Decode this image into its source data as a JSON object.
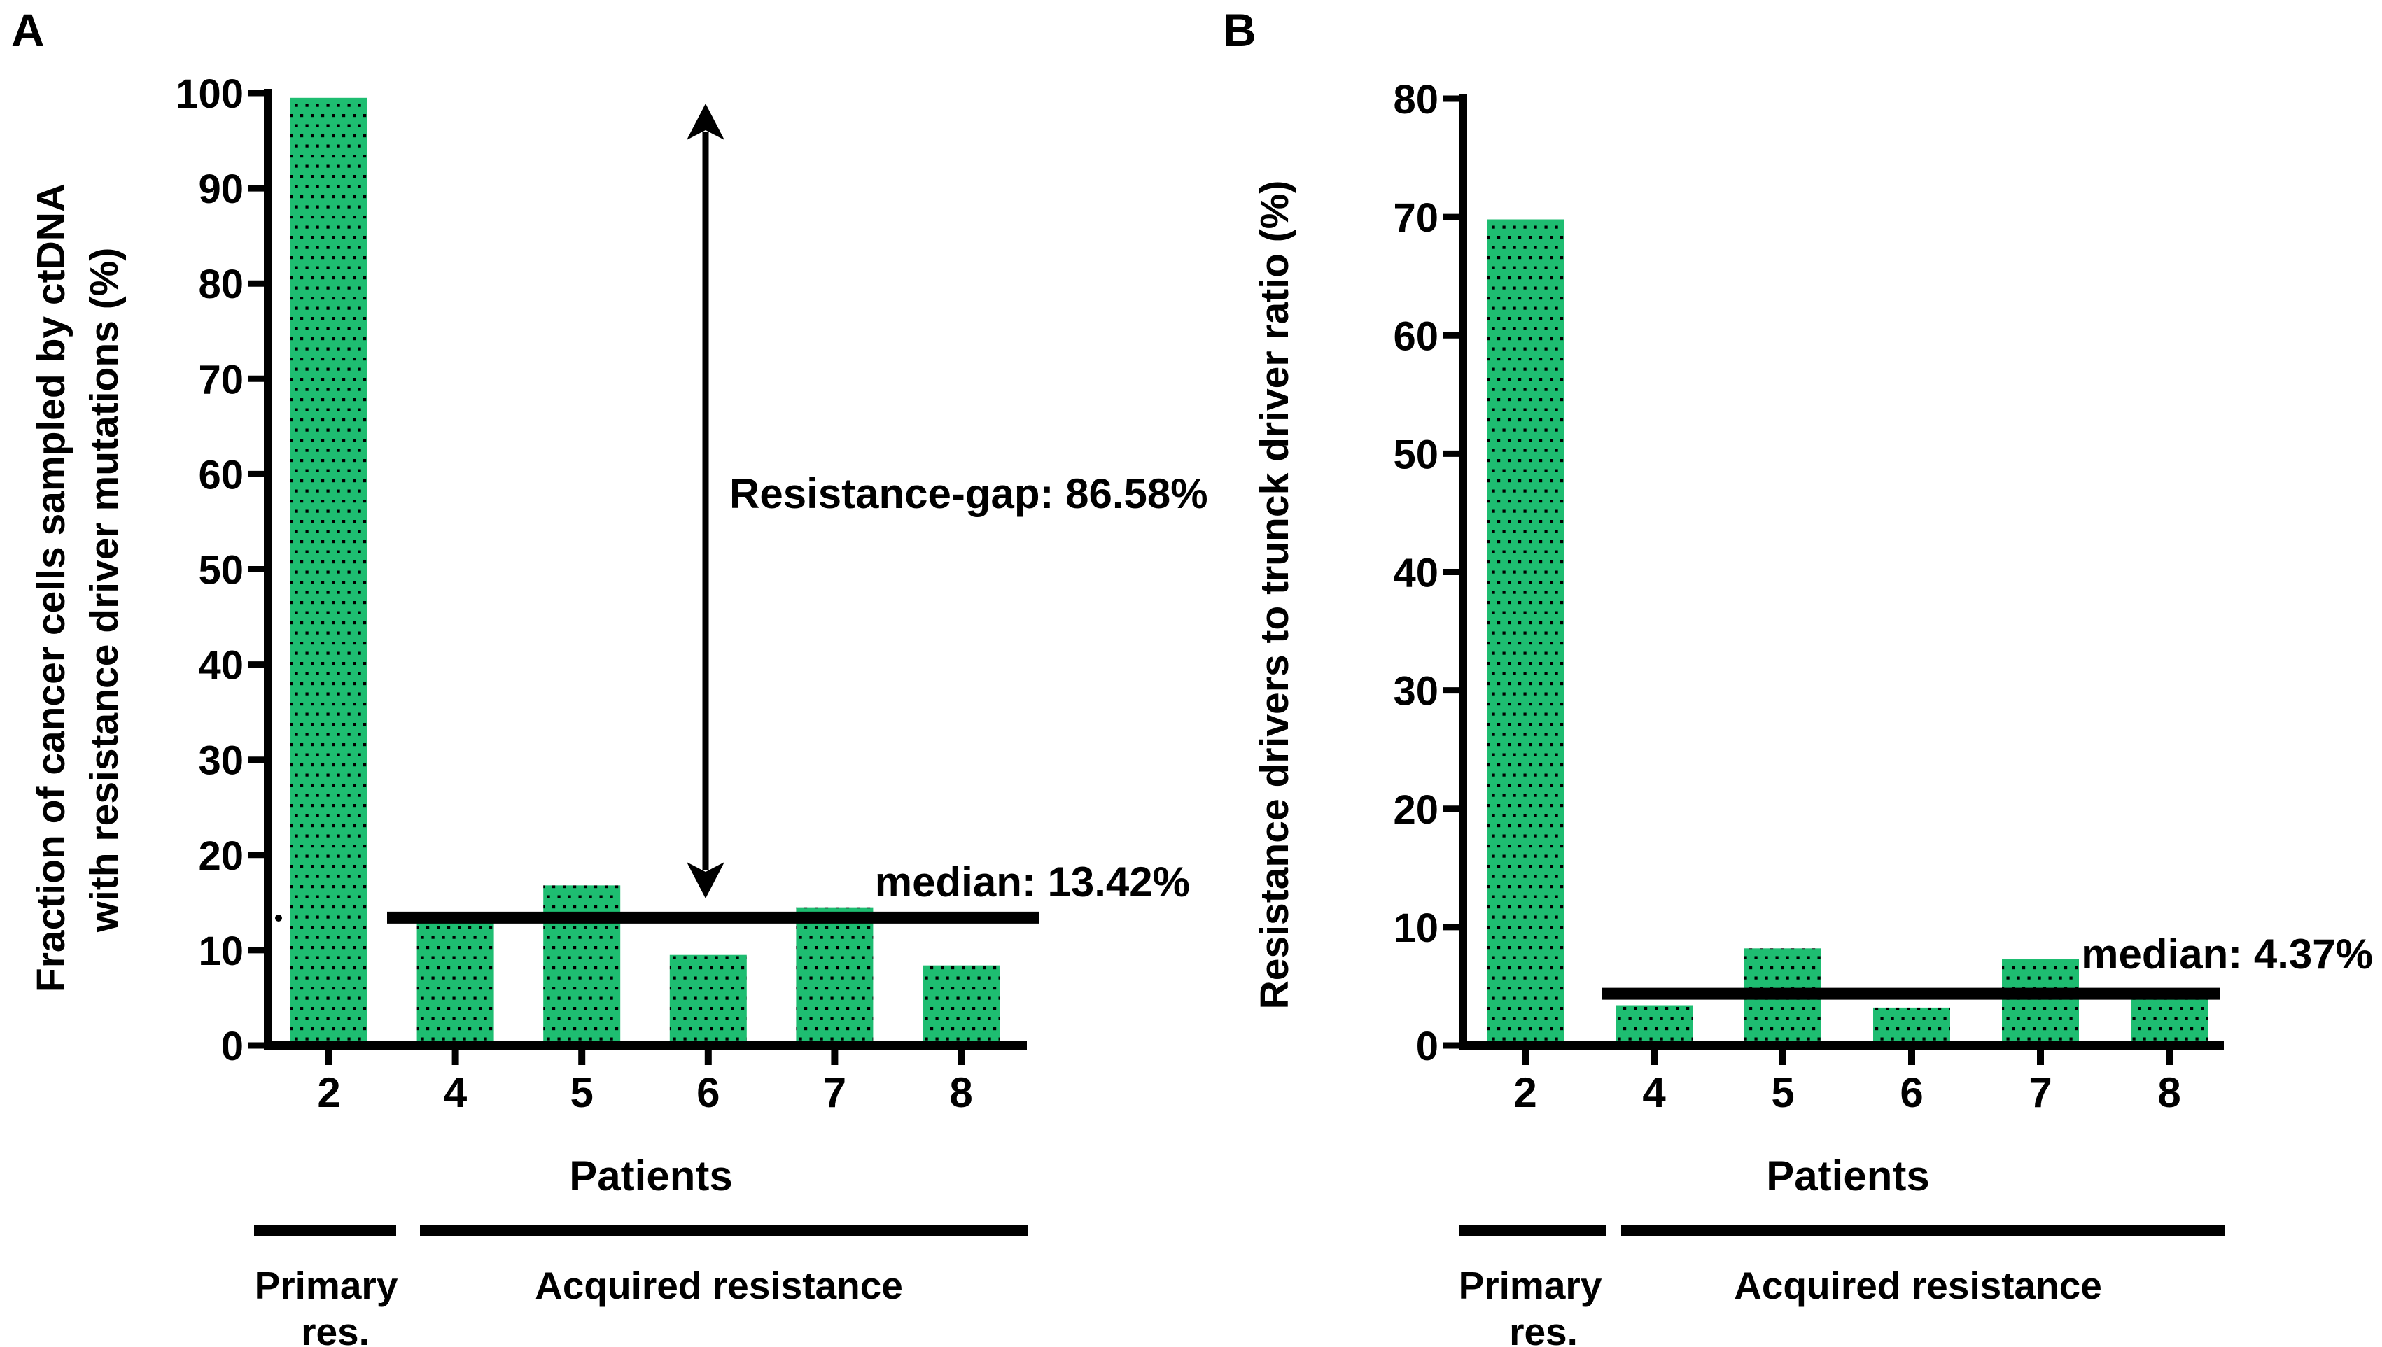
{
  "colors": {
    "bar_fill": "#1ebd71",
    "dot_pattern": "#000000",
    "axis": "#000000",
    "median_line": "#000000",
    "text": "#000000",
    "background": "#ffffff"
  },
  "chart_data": [
    {
      "type": "bar",
      "panel_letter": "A",
      "ylabel_line1": "Fraction of cancer cells sampled by ctDNA",
      "ylabel_line2": "with resistance driver mutations (%)",
      "xlabel": "Patients",
      "categories": [
        "2",
        "4",
        "5",
        "6",
        "7",
        "8"
      ],
      "values": [
        99.5,
        13.0,
        16.8,
        9.5,
        14.5,
        8.4
      ],
      "ylim": [
        0,
        100
      ],
      "ytick_step": 10,
      "grid": false,
      "legend": "none",
      "median_value": 13.42,
      "median_label": "median: 13.42%",
      "annotation": "Resistance-gap: 86.58%",
      "group_primary_line1": "Primary",
      "group_primary_line2": "res.",
      "group_acquired": "Acquired resistance"
    },
    {
      "type": "bar",
      "panel_letter": "B",
      "ylabel_line1": "Resistance drivers to trunck driver ratio (%)",
      "ylabel_line2": "",
      "xlabel": "Patients",
      "categories": [
        "2",
        "4",
        "5",
        "6",
        "7",
        "8"
      ],
      "values": [
        69.8,
        3.4,
        8.2,
        3.2,
        7.3,
        4.2
      ],
      "ylim": [
        0,
        80
      ],
      "ytick_step": 10,
      "grid": false,
      "legend": "none",
      "median_value": 4.37,
      "median_label": "median: 4.37%",
      "annotation": "",
      "group_primary_line1": "Primary",
      "group_primary_line2": "res.",
      "group_acquired": "Acquired resistance"
    }
  ]
}
